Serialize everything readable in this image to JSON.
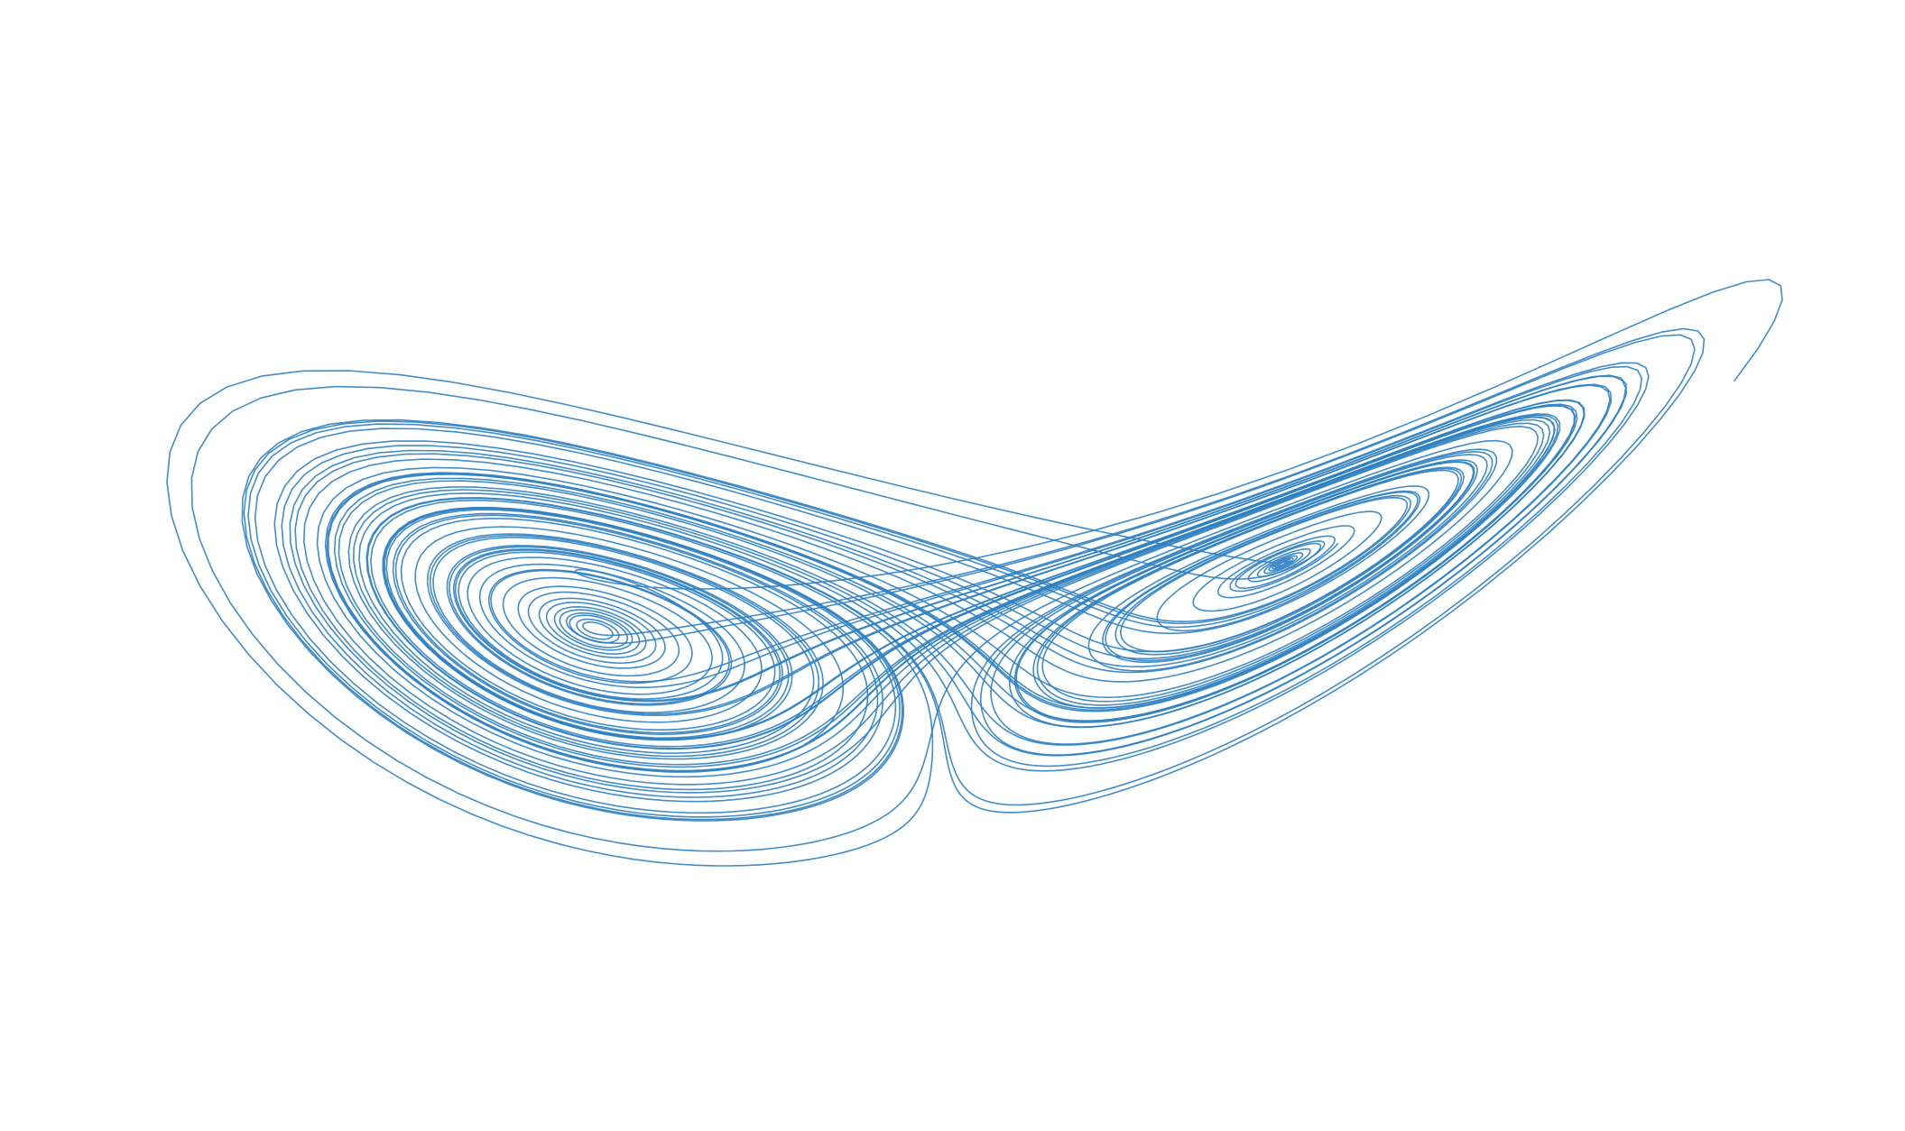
{
  "chart_data": {
    "type": "line",
    "title": "",
    "xlabel": "",
    "ylabel": "",
    "axes_visible": false,
    "grid": false,
    "series": [
      {
        "color": "#2f7fc0",
        "x": [],
        "y": []
      }
    ],
    "projection_note": ""
  },
  "colors": {
    "background": "#ffffff",
    "trajectory": "#2f7fc0"
  }
}
